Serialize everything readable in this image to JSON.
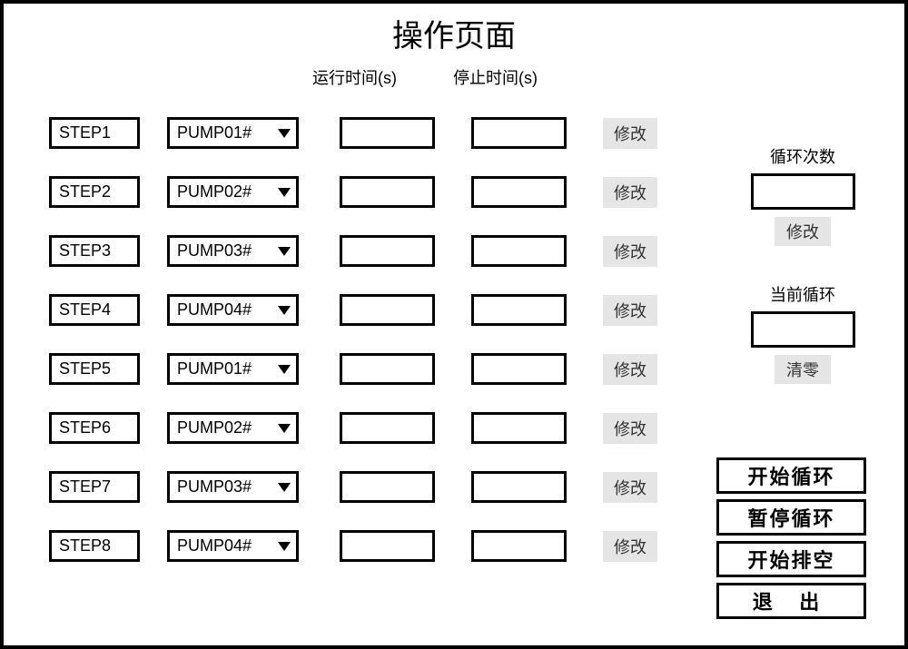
{
  "title": "操作页面",
  "headers": {
    "run_time": "运行时间(s)",
    "stop_time": "停止时间(s)"
  },
  "modify_label": "修改",
  "steps": [
    {
      "step": "STEP1",
      "pump": "PUMP01#",
      "run": "",
      "stop": ""
    },
    {
      "step": "STEP2",
      "pump": "PUMP02#",
      "run": "",
      "stop": ""
    },
    {
      "step": "STEP3",
      "pump": "PUMP03#",
      "run": "",
      "stop": ""
    },
    {
      "step": "STEP4",
      "pump": "PUMP04#",
      "run": "",
      "stop": ""
    },
    {
      "step": "STEP5",
      "pump": "PUMP01#",
      "run": "",
      "stop": ""
    },
    {
      "step": "STEP6",
      "pump": "PUMP02#",
      "run": "",
      "stop": ""
    },
    {
      "step": "STEP7",
      "pump": "PUMP03#",
      "run": "",
      "stop": ""
    },
    {
      "step": "STEP8",
      "pump": "PUMP04#",
      "run": "",
      "stop": ""
    }
  ],
  "loop": {
    "count_label": "循环次数",
    "count_value": "",
    "count_btn": "修改",
    "current_label": "当前循环",
    "current_value": "",
    "current_btn": "清零"
  },
  "buttons": {
    "start_loop": "开始循环",
    "pause_loop": "暂停循环",
    "start_empty": "开始排空",
    "exit": "退 出"
  },
  "colors": {
    "border": "#000000",
    "background": "#ffffff",
    "grey_button": "#e5e5e5",
    "text": "#000000"
  }
}
